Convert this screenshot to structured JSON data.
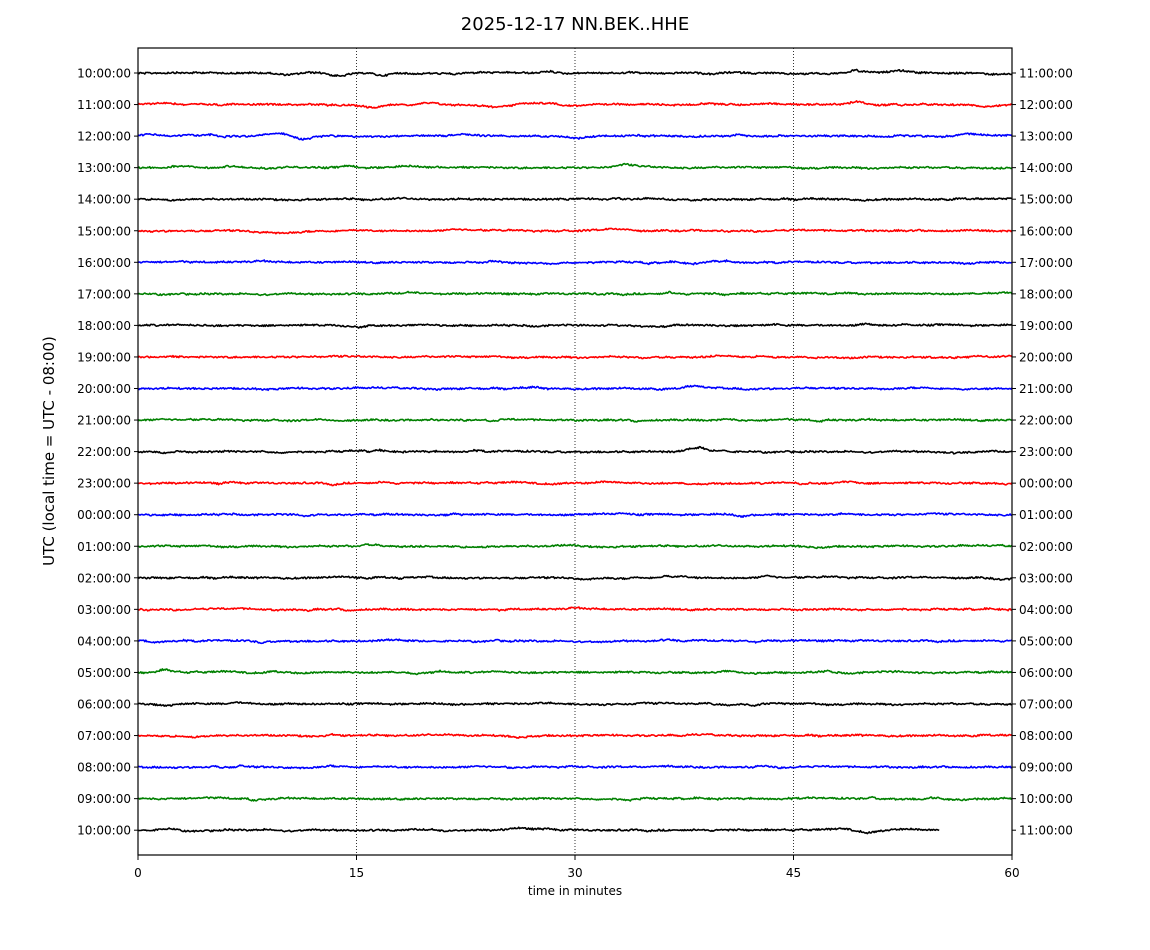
{
  "chart_data": {
    "type": "line",
    "title": "2025-12-17 NN.BEK..HHE",
    "xlabel": "time in minutes",
    "ylabel": "UTC (local time = UTC - 08:00)",
    "xlim": [
      0,
      60
    ],
    "x_ticks": [
      "0",
      "15",
      "30",
      "45",
      "60"
    ],
    "x_tick_values": [
      0,
      15,
      30,
      45,
      60
    ],
    "vertical_grid_minutes": [
      15,
      30,
      45
    ],
    "grid": "vertical dotted",
    "legend": "none",
    "trace_colors": [
      "#000000",
      "#ff0000",
      "#0000ff",
      "#008000"
    ],
    "left_labels": [
      "10:00:00",
      "11:00:00",
      "12:00:00",
      "13:00:00",
      "14:00:00",
      "15:00:00",
      "16:00:00",
      "17:00:00",
      "18:00:00",
      "19:00:00",
      "20:00:00",
      "21:00:00",
      "22:00:00",
      "23:00:00",
      "00:00:00",
      "01:00:00",
      "02:00:00",
      "03:00:00",
      "04:00:00",
      "05:00:00",
      "06:00:00",
      "07:00:00",
      "08:00:00",
      "09:00:00",
      "10:00:00"
    ],
    "right_labels": [
      "11:00:00",
      "12:00:00",
      "13:00:00",
      "14:00:00",
      "15:00:00",
      "16:00:00",
      "17:00:00",
      "18:00:00",
      "19:00:00",
      "20:00:00",
      "21:00:00",
      "22:00:00",
      "23:00:00",
      "00:00:00",
      "01:00:00",
      "02:00:00",
      "03:00:00",
      "04:00:00",
      "05:00:00",
      "06:00:00",
      "07:00:00",
      "08:00:00",
      "09:00:00",
      "10:00:00",
      "11:00:00"
    ],
    "last_trace_end_minute": 55
  }
}
